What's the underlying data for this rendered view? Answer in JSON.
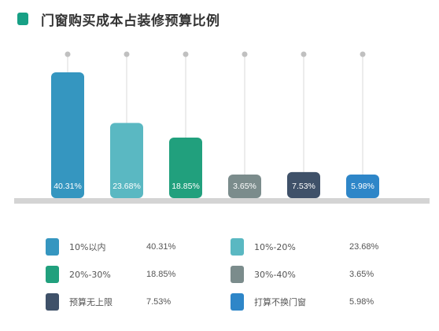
{
  "title": "门窗购买成本占装修预算比例",
  "colors": {
    "title_mark": "#17a085",
    "baseline": "#d4d4d4",
    "stem": "#d9d9d9",
    "dot": "#c0c0c0"
  },
  "chart_data": {
    "type": "bar",
    "title": "门窗购买成本占装修预算比例",
    "categories": [
      "10%以内",
      "20%-30%",
      "预算无上限",
      "10%-20%",
      "30%-40%",
      "打算不换门窗"
    ],
    "bar_order": [
      0,
      3,
      1,
      4,
      2,
      5
    ],
    "values": [
      40.31,
      18.85,
      7.53,
      23.68,
      3.65,
      5.98
    ],
    "value_labels": [
      "40.31%",
      "18.85%",
      "7.53%",
      "23.68%",
      "3.65%",
      "5.98%"
    ],
    "colors": [
      "#3596c0",
      "#21a07d",
      "#3f5169",
      "#5ab8c2",
      "#7b8c8c",
      "#2e86c8"
    ],
    "ylim": [
      0,
      45
    ],
    "legend_position": "bottom"
  }
}
